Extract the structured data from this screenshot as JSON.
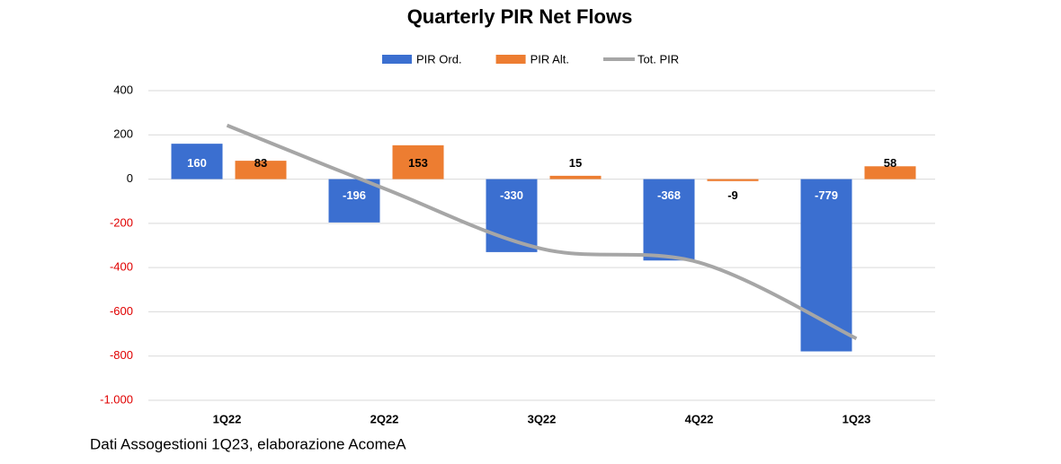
{
  "chart_data": {
    "type": "bar",
    "title": "Quarterly PIR Net Flows",
    "categories": [
      "1Q22",
      "2Q22",
      "3Q22",
      "4Q22",
      "1Q23"
    ],
    "series": [
      {
        "name": "PIR Ord.",
        "color": "#3b6fd0",
        "values": [
          160,
          -196,
          -330,
          -368,
          -779
        ]
      },
      {
        "name": "PIR Alt.",
        "color": "#ed7d31",
        "values": [
          83,
          153,
          15,
          -9,
          58
        ]
      },
      {
        "name": "Tot. PIR",
        "color": "#a6a6a6",
        "type": "line",
        "values": [
          243,
          -43,
          -315,
          -377,
          -721
        ]
      }
    ],
    "ylim": [
      -1000,
      400
    ],
    "yticks": [
      400,
      200,
      0,
      -200,
      -400,
      -600,
      -800,
      {
        "value": -1000,
        "label": "-1.000"
      }
    ],
    "negative_tick_color": "#e00000",
    "grid": true,
    "source": "Dati Assogestioni 1Q23, elaborazione AcomeA"
  }
}
